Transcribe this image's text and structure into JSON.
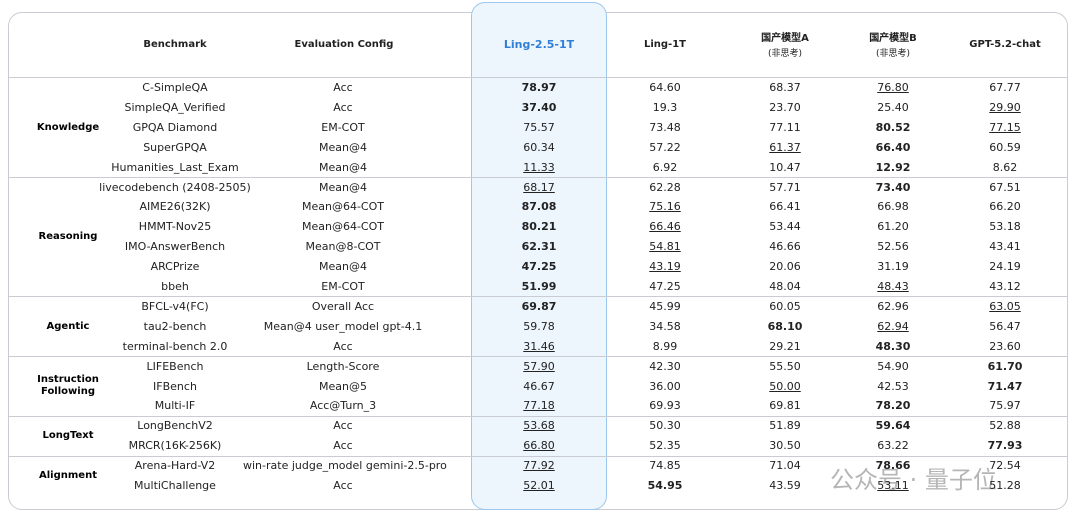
{
  "header": {
    "benchmark": "Benchmark",
    "config": "Evaluation Config",
    "models": [
      {
        "name": "Ling-2.5-1T"
      },
      {
        "name": "Ling-1T"
      },
      {
        "name": "国产模型A",
        "note": "(非思考)"
      },
      {
        "name": "国产模型B",
        "note": "(非思考)"
      },
      {
        "name": "GPT-5.2-chat"
      }
    ]
  },
  "groups": [
    {
      "name": "Knowledge",
      "rows": [
        {
          "benchmark": "C-SimpleQA",
          "config": "Acc",
          "values": [
            "78.97",
            "64.60",
            "68.37",
            "76.80",
            "67.77"
          ],
          "bold": [
            0
          ],
          "underline": [
            3
          ]
        },
        {
          "benchmark": "SimpleQA_Verified",
          "config": "Acc",
          "values": [
            "37.40",
            "19.3",
            "23.70",
            "25.40",
            "29.90"
          ],
          "bold": [
            0
          ],
          "underline": [
            4
          ]
        },
        {
          "benchmark": "GPQA Diamond",
          "config": "EM-COT",
          "values": [
            "75.57",
            "73.48",
            "77.11",
            "80.52",
            "77.15"
          ],
          "bold": [
            3
          ],
          "underline": [
            4
          ]
        },
        {
          "benchmark": "SuperGPQA",
          "config": "Mean@4",
          "values": [
            "60.34",
            "57.22",
            "61.37",
            "66.40",
            "60.59"
          ],
          "bold": [
            3
          ],
          "underline": [
            2
          ]
        },
        {
          "benchmark": "Humanities_Last_Exam",
          "config": "Mean@4",
          "values": [
            "11.33",
            "6.92",
            "10.47",
            "12.92",
            "8.62"
          ],
          "bold": [
            3
          ],
          "underline": [
            0
          ]
        }
      ]
    },
    {
      "name": "Reasoning",
      "rows": [
        {
          "benchmark": "livecodebench (2408-2505)",
          "config": "Mean@4",
          "values": [
            "68.17",
            "62.28",
            "57.71",
            "73.40",
            "67.51"
          ],
          "bold": [
            3
          ],
          "underline": [
            0
          ]
        },
        {
          "benchmark": "AIME26(32K)",
          "config": "Mean@64-COT",
          "values": [
            "87.08",
            "75.16",
            "66.41",
            "66.98",
            "66.20"
          ],
          "bold": [
            0
          ],
          "underline": [
            1
          ]
        },
        {
          "benchmark": "HMMT-Nov25",
          "config": "Mean@64-COT",
          "values": [
            "80.21",
            "66.46",
            "53.44",
            "61.20",
            "53.18"
          ],
          "bold": [
            0
          ],
          "underline": [
            1
          ]
        },
        {
          "benchmark": "IMO-AnswerBench",
          "config": "Mean@8-COT",
          "values": [
            "62.31",
            "54.81",
            "46.66",
            "52.56",
            "43.41"
          ],
          "bold": [
            0
          ],
          "underline": [
            1
          ]
        },
        {
          "benchmark": "ARCPrize",
          "config": "Mean@4",
          "values": [
            "47.25",
            "43.19",
            "20.06",
            "31.19",
            "24.19"
          ],
          "bold": [
            0
          ],
          "underline": [
            1
          ]
        },
        {
          "benchmark": "bbeh",
          "config": "EM-COT",
          "values": [
            "51.99",
            "47.25",
            "48.04",
            "48.43",
            "43.12"
          ],
          "bold": [
            0
          ],
          "underline": [
            3
          ]
        }
      ]
    },
    {
      "name": "Agentic",
      "rows": [
        {
          "benchmark": "BFCL-v4(FC)",
          "config": "Overall Acc",
          "values": [
            "69.87",
            "45.99",
            "60.05",
            "62.96",
            "63.05"
          ],
          "bold": [
            0
          ],
          "underline": [
            4
          ]
        },
        {
          "benchmark": "tau2-bench",
          "config": "Mean@4 user_model gpt-4.1",
          "values": [
            "59.78",
            "34.58",
            "68.10",
            "62.94",
            "56.47"
          ],
          "bold": [
            2
          ],
          "underline": [
            3
          ]
        },
        {
          "benchmark": "terminal-bench 2.0",
          "config": "Acc",
          "values": [
            "31.46",
            "8.99",
            "29.21",
            "48.30",
            "23.60"
          ],
          "bold": [
            3
          ],
          "underline": [
            0
          ]
        }
      ]
    },
    {
      "name": "Instruction Following",
      "rows": [
        {
          "benchmark": "LIFEBench",
          "config": "Length-Score",
          "values": [
            "57.90",
            "42.30",
            "55.50",
            "54.90",
            "61.70"
          ],
          "bold": [
            4
          ],
          "underline": [
            0
          ]
        },
        {
          "benchmark": "IFBench",
          "config": "Mean@5",
          "values": [
            "46.67",
            "36.00",
            "50.00",
            "42.53",
            "71.47"
          ],
          "bold": [
            4
          ],
          "underline": [
            2
          ]
        },
        {
          "benchmark": "Multi-IF",
          "config": "Acc@Turn_3",
          "values": [
            "77.18",
            "69.93",
            "69.81",
            "78.20",
            "75.97"
          ],
          "bold": [
            3
          ],
          "underline": [
            0
          ]
        }
      ]
    },
    {
      "name": "LongText",
      "rows": [
        {
          "benchmark": "LongBenchV2",
          "config": "Acc",
          "values": [
            "53.68",
            "50.30",
            "51.89",
            "59.64",
            "52.88"
          ],
          "bold": [
            3
          ],
          "underline": [
            0
          ]
        },
        {
          "benchmark": "MRCR(16K-256K)",
          "config": "Acc",
          "values": [
            "66.80",
            "52.35",
            "30.50",
            "63.22",
            "77.93"
          ],
          "bold": [
            4
          ],
          "underline": [
            0
          ]
        }
      ]
    },
    {
      "name": "Alignment",
      "rows": [
        {
          "benchmark": "Arena-Hard-V2",
          "config": "win-rate judge_model gemini-2.5-pro",
          "values": [
            "77.92",
            "74.85",
            "71.04",
            "78.66",
            "72.54"
          ],
          "bold": [
            3
          ],
          "underline": [
            0
          ]
        },
        {
          "benchmark": "MultiChallenge",
          "config": "Acc",
          "values": [
            "52.01",
            "54.95",
            "43.59",
            "53.11",
            "51.28"
          ],
          "bold": [
            1
          ],
          "underline": [
            0,
            3
          ]
        }
      ]
    }
  ],
  "watermark": "公众号 · 量子位"
}
